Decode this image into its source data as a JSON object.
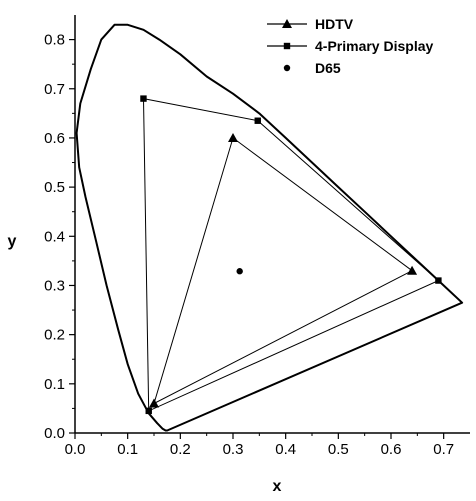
{
  "chart_data": {
    "type": "scatter",
    "title": "",
    "xlabel": "x",
    "ylabel": "y",
    "xlim": [
      0.0,
      0.75
    ],
    "ylim": [
      0.0,
      0.85
    ],
    "grid": false,
    "legend_position": "top-right",
    "x_ticks": [
      "0.0",
      "0.1",
      "0.2",
      "0.3",
      "0.4",
      "0.5",
      "0.6",
      "0.7"
    ],
    "y_ticks": [
      "0.0",
      "0.1",
      "0.2",
      "0.3",
      "0.4",
      "0.5",
      "0.6",
      "0.7",
      "0.8"
    ],
    "spectral_locus": [
      [
        0.175,
        0.005
      ],
      [
        0.172,
        0.005
      ],
      [
        0.166,
        0.009
      ],
      [
        0.156,
        0.02
      ],
      [
        0.14,
        0.04
      ],
      [
        0.12,
        0.08
      ],
      [
        0.1,
        0.14
      ],
      [
        0.082,
        0.21
      ],
      [
        0.06,
        0.3
      ],
      [
        0.04,
        0.39
      ],
      [
        0.02,
        0.48
      ],
      [
        0.008,
        0.54
      ],
      [
        0.003,
        0.61
      ],
      [
        0.01,
        0.67
      ],
      [
        0.03,
        0.74
      ],
      [
        0.05,
        0.8
      ],
      [
        0.075,
        0.83
      ],
      [
        0.1,
        0.83
      ],
      [
        0.13,
        0.82
      ],
      [
        0.16,
        0.8
      ],
      [
        0.2,
        0.77
      ],
      [
        0.25,
        0.725
      ],
      [
        0.3,
        0.69
      ],
      [
        0.35,
        0.65
      ],
      [
        0.4,
        0.6
      ],
      [
        0.45,
        0.55
      ],
      [
        0.5,
        0.5
      ],
      [
        0.55,
        0.45
      ],
      [
        0.6,
        0.4
      ],
      [
        0.65,
        0.35
      ],
      [
        0.7,
        0.3
      ],
      [
        0.735,
        0.265
      ]
    ],
    "series": [
      {
        "name": "HDTV",
        "marker": "triangle",
        "closed": true,
        "points": [
          [
            0.64,
            0.33
          ],
          [
            0.3,
            0.6
          ],
          [
            0.15,
            0.06
          ]
        ]
      },
      {
        "name": "4-Primary Display",
        "marker": "square",
        "closed": true,
        "points": [
          [
            0.69,
            0.31
          ],
          [
            0.347,
            0.635
          ],
          [
            0.13,
            0.68
          ],
          [
            0.14,
            0.045
          ]
        ]
      },
      {
        "name": "D65",
        "marker": "circle",
        "closed": false,
        "points": [
          [
            0.3127,
            0.329
          ]
        ]
      }
    ]
  }
}
